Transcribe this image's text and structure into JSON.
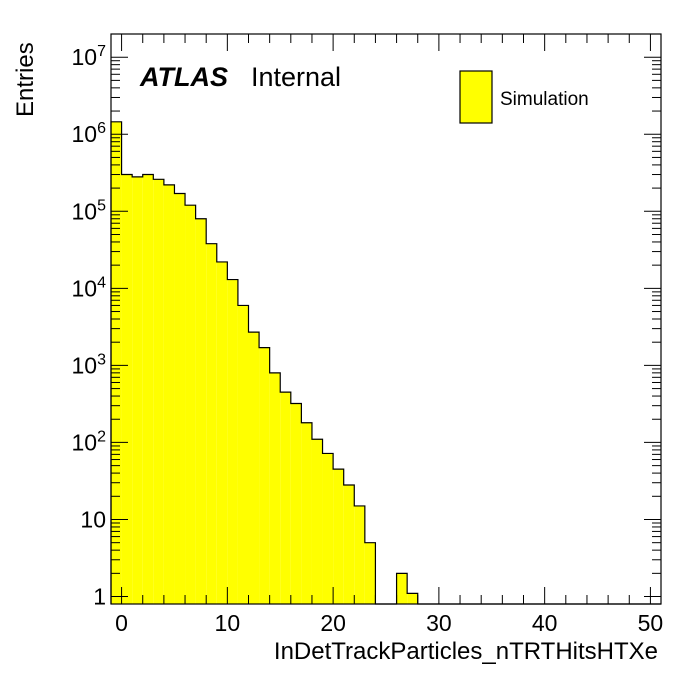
{
  "chart_data": {
    "type": "bar",
    "title": "",
    "xlabel": "InDetTrackParticles_nTRTHitsHTXe",
    "ylabel": "Entries",
    "xlim": [
      -1,
      51
    ],
    "ylim": [
      0.8,
      20000000
    ],
    "y_scale": "log",
    "grid": false,
    "legend_position": "top-right",
    "annotation": {
      "bold": "ATLAS",
      "text": "Internal"
    },
    "x_ticks": [
      {
        "value": 0,
        "label": "0"
      },
      {
        "value": 10,
        "label": "10"
      },
      {
        "value": 20,
        "label": "20"
      },
      {
        "value": 30,
        "label": "30"
      },
      {
        "value": 40,
        "label": "40"
      },
      {
        "value": 50,
        "label": "50"
      }
    ],
    "y_ticks": [
      {
        "value": 1,
        "base": "1",
        "exp": ""
      },
      {
        "value": 10,
        "base": "10",
        "exp": ""
      },
      {
        "value": 100,
        "base": "10",
        "exp": "2"
      },
      {
        "value": 1000,
        "base": "10",
        "exp": "3"
      },
      {
        "value": 10000,
        "base": "10",
        "exp": "4"
      },
      {
        "value": 100000,
        "base": "10",
        "exp": "5"
      },
      {
        "value": 1000000,
        "base": "10",
        "exp": "6"
      },
      {
        "value": 10000000,
        "base": "10",
        "exp": "7"
      }
    ],
    "bin_edges": [
      -1,
      0,
      1,
      2,
      3,
      4,
      5,
      6,
      7,
      8,
      9,
      10,
      11,
      12,
      13,
      14,
      15,
      16,
      17,
      18,
      19,
      20,
      21,
      22,
      23,
      24,
      25,
      26,
      27,
      28,
      29,
      30,
      31,
      32,
      33,
      34,
      35,
      36,
      37,
      38,
      39,
      40,
      41,
      42,
      43,
      44,
      45,
      46,
      47,
      48,
      49,
      50,
      51
    ],
    "series": [
      {
        "name": "Simulation",
        "color": "#ffff00",
        "edge_color": "#000000",
        "values": [
          1450000,
          300000,
          280000,
          300000,
          260000,
          220000,
          170000,
          120000,
          80000,
          38000,
          22000,
          13000,
          6000,
          2700,
          1700,
          800,
          450,
          320,
          180,
          110,
          72,
          45,
          28,
          15,
          5,
          0,
          0,
          2,
          1.1,
          0,
          0,
          0,
          0,
          0,
          0,
          0,
          0,
          0,
          0,
          0,
          0,
          0,
          0,
          0,
          0,
          0,
          0,
          0,
          0,
          0,
          0,
          0
        ]
      }
    ]
  }
}
